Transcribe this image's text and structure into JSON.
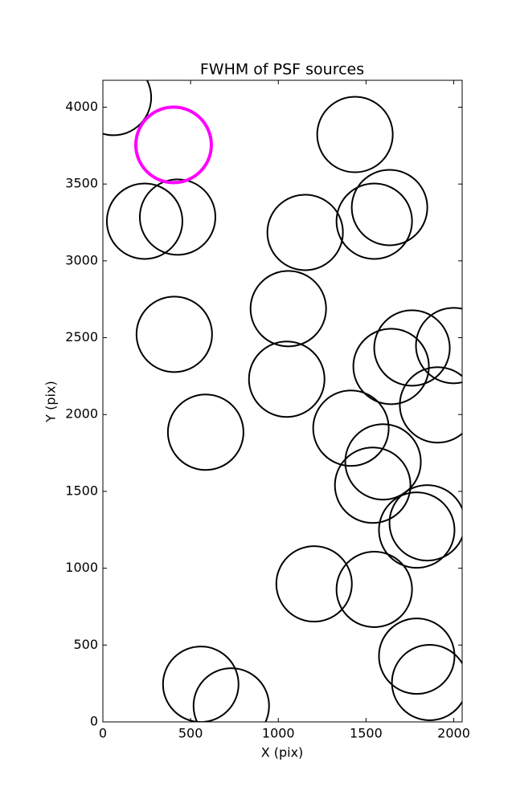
{
  "chart_data": {
    "type": "scatter",
    "title": "FWHM of PSF sources",
    "xlabel": "X (pix)",
    "ylabel": "Y (pix)",
    "series": [
      {
        "color": "#000000",
        "x": [
          60,
          238,
          426,
          1437,
          1634,
          1547,
          1153,
          1057,
          407,
          1048,
          586,
          1762,
          2000,
          1643,
          1908,
          1414,
          1597,
          1538,
          1849,
          1789,
          1204,
          1547,
          1789,
          1863,
          558,
          732
        ],
        "values": [
          4063,
          3258,
          3285,
          3822,
          3347,
          3258,
          3185,
          2689,
          2522,
          2230,
          1885,
          2433,
          2449,
          2313,
          2063,
          1911,
          1692,
          1540,
          1295,
          1248,
          898,
          862,
          428,
          256,
          245,
          104
        ]
      },
      {
        "color": "#ff00ff",
        "x": [
          403
        ],
        "values": [
          3755
        ]
      }
    ],
    "xlim": [
      0,
      2048
    ],
    "ylim": [
      0,
      4175
    ],
    "xticks": [
      0,
      500,
      1000,
      1500,
      2000
    ],
    "yticks": [
      0,
      500,
      1000,
      1500,
      2000,
      2500,
      3000,
      3500,
      4000
    ]
  }
}
